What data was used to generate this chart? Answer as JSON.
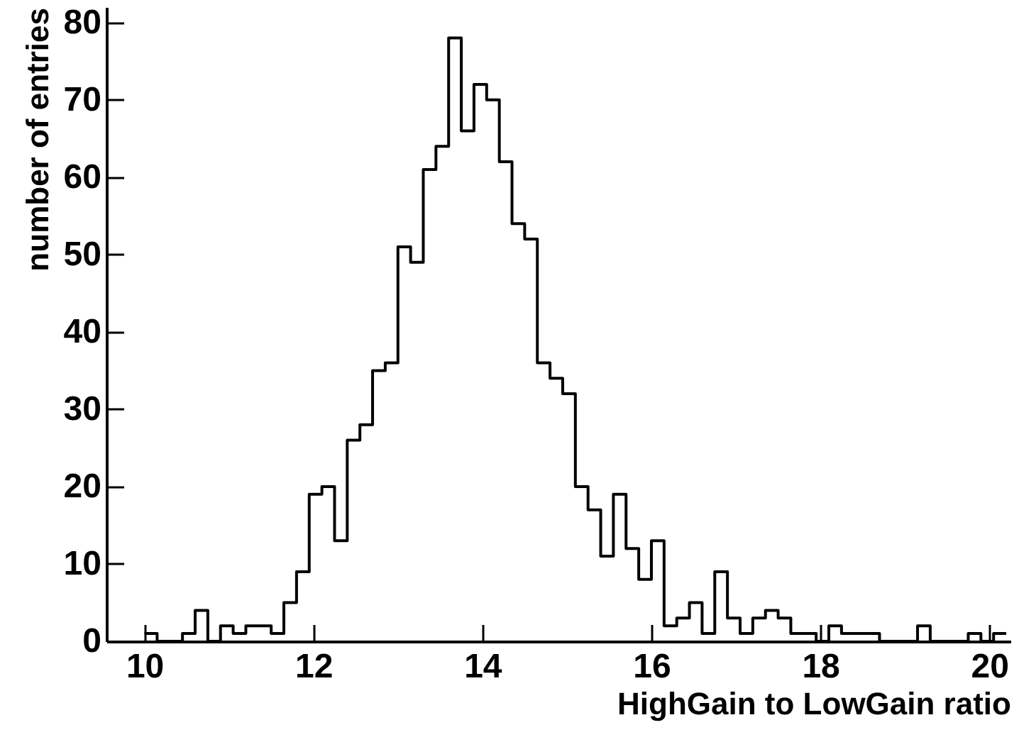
{
  "chart_data": {
    "type": "histogram",
    "xlabel": "HighGain to LowGain ratio",
    "ylabel": "number of entries",
    "color": "#000000",
    "bins": [
      10,
      10.15,
      10.3,
      10.45,
      10.6,
      10.75,
      10.9,
      11.05,
      11.2,
      11.35,
      11.5,
      11.65,
      11.8,
      11.95,
      12.1,
      12.25,
      12.4,
      12.55,
      12.7,
      12.85,
      13,
      13.15,
      13.3,
      13.45,
      13.6,
      13.75,
      13.9,
      14.05,
      14.2,
      14.35,
      14.5,
      14.65,
      14.8,
      14.95,
      15.1,
      15.25,
      15.4,
      15.55,
      15.7,
      15.85,
      16,
      16.15,
      16.3,
      16.45,
      16.6,
      16.75,
      16.9,
      17.05,
      17.2,
      17.35,
      17.5,
      17.65,
      17.8,
      17.95,
      18.1,
      18.25,
      18.4,
      18.55,
      18.7,
      18.85,
      19,
      19.15,
      19.3,
      19.45,
      19.6,
      19.75,
      19.9,
      20.05,
      20.2
    ],
    "values": [
      1,
      0,
      0,
      1,
      4,
      0,
      2,
      1,
      2,
      2,
      1,
      5,
      9,
      19,
      20,
      13,
      26,
      28,
      35,
      36,
      51,
      49,
      61,
      64,
      78,
      66,
      72,
      70,
      62,
      54,
      52,
      36,
      34,
      32,
      20,
      17,
      11,
      19,
      12,
      8,
      13,
      2,
      3,
      5,
      1,
      9,
      3,
      1,
      3,
      4,
      3,
      1,
      1,
      0,
      2,
      1,
      1,
      1,
      0,
      0,
      0,
      2,
      0,
      0,
      0,
      1,
      0,
      1
    ],
    "xlim": [
      9.55,
      20.25
    ],
    "ylim": [
      0,
      82
    ],
    "xticks": [
      10,
      12,
      14,
      16,
      18,
      20
    ],
    "yticks": [
      0,
      10,
      20,
      30,
      40,
      50,
      60,
      70,
      80
    ]
  }
}
